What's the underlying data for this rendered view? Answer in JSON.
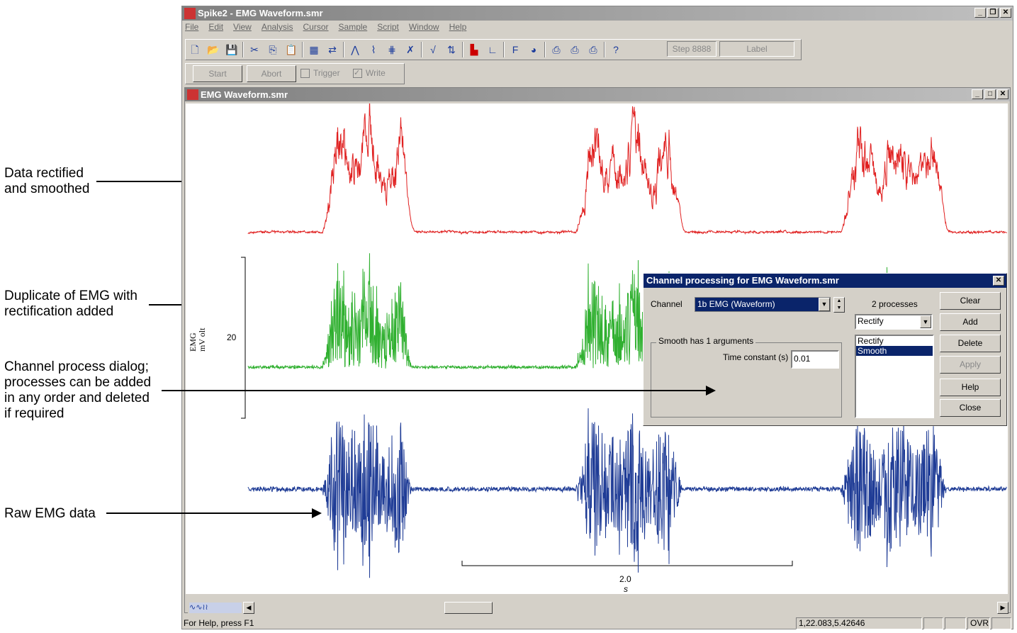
{
  "annotations": [
    {
      "lines": [
        "Data rectified",
        "and smoothed"
      ]
    },
    {
      "lines": [
        "Duplicate of EMG with",
        "rectification added"
      ]
    },
    {
      "lines": [
        "Channel process dialog;",
        "processes can be added",
        "in any order and deleted",
        "if required"
      ]
    },
    {
      "lines": [
        "Raw EMG data"
      ]
    }
  ],
  "app": {
    "title": "Spike2 - EMG Waveform.smr",
    "menu": [
      "File",
      "Edit",
      "View",
      "Analysis",
      "Cursor",
      "Sample",
      "Script",
      "Window",
      "Help"
    ],
    "toolbar_icons": [
      "new-file",
      "open-folder",
      "save",
      "cut",
      "copy",
      "paste",
      "calendar",
      "sampling-config",
      "waveform",
      "spike",
      "marker",
      "cursor-delete",
      "vertical-cursor",
      "horizontal-cursors",
      "histogram",
      "xy-plot",
      "function",
      "palette",
      "print",
      "print-visible",
      "print-selection",
      "help"
    ],
    "step_label": "Step 8888",
    "label_field": "Label",
    "sample_bar": {
      "start": "Start",
      "abort": "Abort",
      "trigger": "Trigger",
      "write": "Write",
      "trigger_checked": false,
      "write_checked": true
    }
  },
  "data_window": {
    "title": "EMG Waveform.smr",
    "y_axis_label": "EMG",
    "y_axis_unit": "mV olt",
    "y_tick": "20",
    "time_scale": "2.0",
    "time_unit": "s",
    "trace_colors": {
      "rectified_smoothed": "#e02020",
      "rectified": "#30b030",
      "raw": "#1f3c96"
    }
  },
  "dialog": {
    "title": "Channel processing for EMG Waveform.smr",
    "channel_label": "Channel",
    "channel_value": "1b EMG (Waveform)",
    "process_count": "2 processes",
    "process_select": "Rectify",
    "group_label": "Smooth has 1 arguments",
    "arg_label": "Time constant (s)",
    "arg_value": "0.01",
    "processes": [
      "Rectify",
      "Smooth"
    ],
    "selected_process": "Smooth",
    "buttons": {
      "clear": "Clear",
      "add": "Add",
      "delete": "Delete",
      "apply": "Apply",
      "help": "Help",
      "close": "Close"
    }
  },
  "status": {
    "help": "For Help, press F1",
    "coords": "1,22.083,5.42646",
    "ovr": "OVR"
  }
}
